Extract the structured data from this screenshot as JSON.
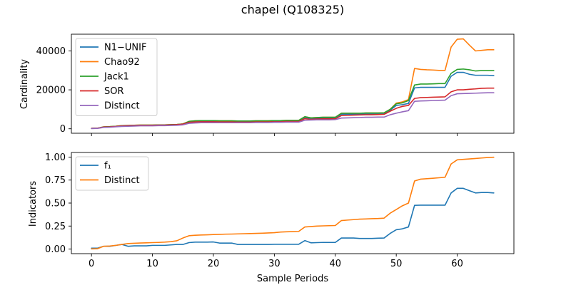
{
  "figure": {
    "title": "chapel (Q108325)"
  },
  "chart_data": [
    {
      "type": "line",
      "ylabel": "Cardinality",
      "xlabel": "",
      "xlim": [
        -3.3,
        69.3
      ],
      "ylim": [
        -2300,
        48600
      ],
      "xticks": [
        0,
        10,
        20,
        30,
        40,
        50,
        60
      ],
      "yticks": [
        0,
        20000,
        40000
      ],
      "show_xtick_labels": false,
      "legend_position": "upper-left",
      "x": [
        0,
        1,
        2,
        3,
        4,
        5,
        6,
        7,
        8,
        9,
        10,
        11,
        12,
        13,
        14,
        15,
        16,
        17,
        18,
        19,
        20,
        21,
        22,
        23,
        24,
        25,
        26,
        27,
        28,
        29,
        30,
        31,
        32,
        33,
        34,
        35,
        36,
        37,
        38,
        39,
        40,
        41,
        42,
        43,
        44,
        45,
        46,
        47,
        48,
        49,
        50,
        51,
        52,
        53,
        54,
        55,
        56,
        57,
        58,
        59,
        60,
        61,
        62,
        63,
        64,
        65,
        66
      ],
      "series": [
        {
          "name": "N1−UNIF",
          "color": "#1f77b4",
          "values": [
            200,
            300,
            900,
            1000,
            1200,
            1500,
            1600,
            1700,
            1800,
            1800,
            1800,
            1900,
            1900,
            2000,
            2100,
            2400,
            3500,
            3800,
            3900,
            3900,
            3900,
            3800,
            3800,
            3800,
            3700,
            3700,
            3700,
            3800,
            3800,
            3800,
            3900,
            3900,
            4000,
            4000,
            4000,
            5800,
            5200,
            5400,
            5500,
            5500,
            5500,
            7500,
            7500,
            7500,
            7500,
            7600,
            7600,
            7600,
            7700,
            9500,
            12000,
            12400,
            13000,
            21000,
            21300,
            21300,
            21300,
            21300,
            21300,
            27000,
            29000,
            29000,
            28000,
            27500,
            27500,
            27500,
            27300
          ]
        },
        {
          "name": "Chao92",
          "color": "#ff7f0e",
          "values": [
            200,
            300,
            1000,
            1100,
            1300,
            1600,
            1700,
            1800,
            1900,
            1900,
            1900,
            2000,
            2000,
            2100,
            2200,
            2500,
            3800,
            4100,
            4200,
            4200,
            4200,
            4100,
            4100,
            4100,
            4000,
            4000,
            4000,
            4100,
            4100,
            4100,
            4200,
            4200,
            4300,
            4300,
            4300,
            6200,
            5600,
            5800,
            5900,
            5900,
            5900,
            8000,
            8000,
            8000,
            8000,
            8100,
            8100,
            8100,
            8200,
            10000,
            13200,
            13800,
            15000,
            31000,
            30500,
            30300,
            30200,
            30000,
            30000,
            42000,
            46000,
            46200,
            43000,
            40000,
            40300,
            40600,
            40600
          ]
        },
        {
          "name": "Jack1",
          "color": "#2ca02c",
          "values": [
            200,
            300,
            1000,
            1100,
            1300,
            1600,
            1700,
            1800,
            1900,
            1900,
            1900,
            2000,
            2000,
            2100,
            2200,
            2500,
            3800,
            4100,
            4200,
            4200,
            4200,
            4100,
            4100,
            4100,
            4000,
            4000,
            4000,
            4100,
            4100,
            4100,
            4200,
            4200,
            4300,
            4300,
            4300,
            6200,
            5600,
            5800,
            5900,
            5900,
            5900,
            8000,
            8000,
            8000,
            8000,
            8100,
            8100,
            8100,
            8200,
            10000,
            12800,
            13300,
            14500,
            22500,
            23000,
            23000,
            23100,
            23200,
            23200,
            28500,
            30500,
            30700,
            30300,
            29700,
            29900,
            29900,
            29900
          ]
        },
        {
          "name": "SOR",
          "color": "#d62728",
          "values": [
            200,
            300,
            900,
            1000,
            1200,
            1500,
            1600,
            1700,
            1800,
            1800,
            1800,
            1900,
            1900,
            2000,
            2100,
            2400,
            3300,
            3500,
            3600,
            3600,
            3600,
            3500,
            3500,
            3500,
            3400,
            3400,
            3400,
            3500,
            3500,
            3500,
            3600,
            3600,
            3700,
            3700,
            3700,
            5200,
            4800,
            5000,
            5100,
            5100,
            5100,
            6800,
            6900,
            7000,
            7100,
            7200,
            7200,
            7300,
            7400,
            9000,
            10500,
            11500,
            12000,
            15600,
            16000,
            16100,
            16200,
            16300,
            16400,
            19000,
            20000,
            20000,
            20300,
            20500,
            20800,
            20900,
            20900
          ]
        },
        {
          "name": "Distinct",
          "color": "#9467bd",
          "values": [
            100,
            200,
            700,
            800,
            1000,
            1200,
            1300,
            1400,
            1500,
            1500,
            1500,
            1600,
            1600,
            1700,
            1800,
            2000,
            2800,
            3000,
            3100,
            3100,
            3100,
            3100,
            3100,
            3100,
            3100,
            3100,
            3100,
            3200,
            3200,
            3200,
            3300,
            3300,
            3400,
            3400,
            3400,
            4400,
            4500,
            4600,
            4600,
            4600,
            4700,
            5500,
            5600,
            5700,
            5800,
            5900,
            5900,
            6000,
            6000,
            7200,
            8000,
            8700,
            9300,
            14100,
            14300,
            14400,
            14500,
            14600,
            14700,
            17000,
            18000,
            18100,
            18200,
            18300,
            18400,
            18500,
            18500
          ]
        }
      ]
    },
    {
      "type": "line",
      "ylabel": "Indicators",
      "xlabel": "Sample Periods",
      "xlim": [
        -3.3,
        69.3
      ],
      "ylim": [
        -0.05,
        1.05
      ],
      "xticks": [
        0,
        10,
        20,
        30,
        40,
        50,
        60
      ],
      "yticks": [
        0.0,
        0.25,
        0.5,
        0.75,
        1.0
      ],
      "show_xtick_labels": true,
      "legend_position": "upper-left",
      "x": [
        0,
        1,
        2,
        3,
        4,
        5,
        6,
        7,
        8,
        9,
        10,
        11,
        12,
        13,
        14,
        15,
        16,
        17,
        18,
        19,
        20,
        21,
        22,
        23,
        24,
        25,
        26,
        27,
        28,
        29,
        30,
        31,
        32,
        33,
        34,
        35,
        36,
        37,
        38,
        39,
        40,
        41,
        42,
        43,
        44,
        45,
        46,
        47,
        48,
        49,
        50,
        51,
        52,
        53,
        54,
        55,
        56,
        57,
        58,
        59,
        60,
        61,
        62,
        63,
        64,
        65,
        66
      ],
      "series": [
        {
          "name": "f₁",
          "color": "#1f77b4",
          "values": [
            0.01,
            0.01,
            0.03,
            0.03,
            0.04,
            0.05,
            0.03,
            0.035,
            0.035,
            0.035,
            0.04,
            0.04,
            0.04,
            0.045,
            0.05,
            0.05,
            0.07,
            0.075,
            0.075,
            0.075,
            0.077,
            0.065,
            0.065,
            0.065,
            0.05,
            0.05,
            0.05,
            0.05,
            0.05,
            0.05,
            0.052,
            0.052,
            0.052,
            0.052,
            0.052,
            0.092,
            0.068,
            0.07,
            0.072,
            0.072,
            0.072,
            0.12,
            0.12,
            0.12,
            0.115,
            0.115,
            0.115,
            0.118,
            0.12,
            0.17,
            0.21,
            0.22,
            0.24,
            0.475,
            0.477,
            0.477,
            0.477,
            0.477,
            0.477,
            0.61,
            0.66,
            0.66,
            0.635,
            0.61,
            0.615,
            0.615,
            0.61
          ]
        },
        {
          "name": "Distinct",
          "color": "#ff7f0e",
          "values": [
            0.002,
            0.004,
            0.03,
            0.033,
            0.04,
            0.05,
            0.06,
            0.063,
            0.066,
            0.068,
            0.07,
            0.072,
            0.075,
            0.08,
            0.09,
            0.12,
            0.145,
            0.15,
            0.153,
            0.155,
            0.158,
            0.16,
            0.162,
            0.163,
            0.165,
            0.167,
            0.168,
            0.17,
            0.172,
            0.175,
            0.178,
            0.185,
            0.188,
            0.19,
            0.192,
            0.24,
            0.245,
            0.25,
            0.252,
            0.254,
            0.256,
            0.31,
            0.315,
            0.32,
            0.325,
            0.327,
            0.33,
            0.332,
            0.336,
            0.39,
            0.43,
            0.47,
            0.5,
            0.74,
            0.76,
            0.765,
            0.77,
            0.775,
            0.78,
            0.925,
            0.97,
            0.975,
            0.98,
            0.985,
            0.99,
            0.995,
            0.998
          ]
        }
      ]
    }
  ]
}
